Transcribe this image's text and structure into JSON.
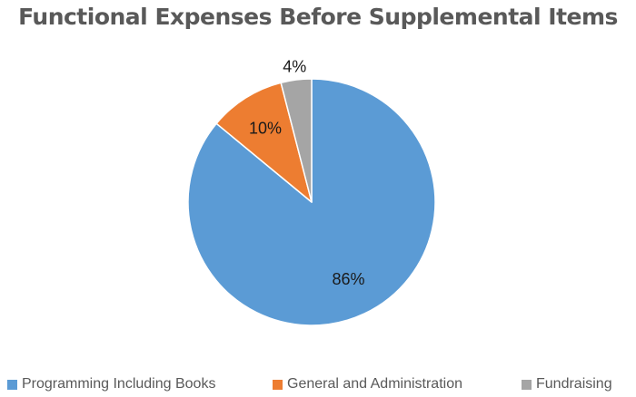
{
  "chart_data": {
    "type": "pie",
    "title": "Functional Expenses Before Supplemental Items",
    "categories": [
      "Programming Including Books",
      "General and Administration",
      "Fundraising"
    ],
    "values": [
      86,
      10,
      4
    ],
    "labels": [
      "86%",
      "10%",
      "4%"
    ],
    "colors": [
      "#5B9BD5",
      "#ED7D31",
      "#A5A5A5"
    ],
    "legend_position": "bottom"
  }
}
